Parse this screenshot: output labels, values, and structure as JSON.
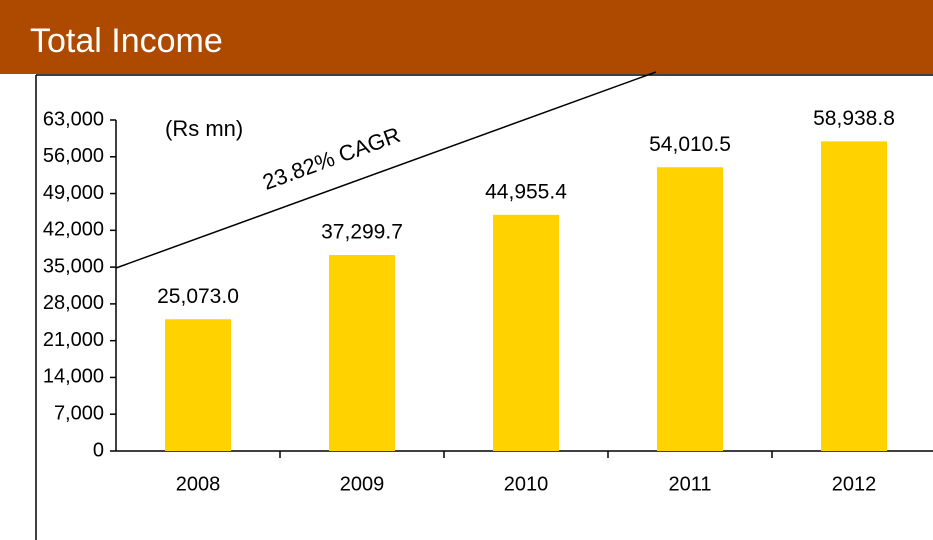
{
  "chart_data": {
    "type": "bar",
    "title": "Total Income",
    "unit_label": "(Rs mn)",
    "annotation": "23.82% CAGR",
    "categories": [
      "2008",
      "2009",
      "2010",
      "2011",
      "2012"
    ],
    "values": [
      25073.0,
      37299.7,
      44955.4,
      54010.5,
      58938.8
    ],
    "value_labels": [
      "25,073.0",
      "37,299.7",
      "44,955.4",
      "54,010.5",
      "58,938.8"
    ],
    "color": "#ffd200",
    "ylim": [
      0,
      63000
    ],
    "yticks": [
      0,
      {
        "value": 7000,
        "label": "7,000"
      },
      {
        "value": 14000,
        "label": "14,000"
      },
      {
        "value": 21000,
        "label": "21,000"
      },
      {
        "value": 28000,
        "label": "28,000"
      },
      {
        "value": 35000,
        "label": "35,000"
      },
      {
        "value": 42000,
        "label": "42,000"
      },
      {
        "value": 49000,
        "label": "49,000"
      },
      {
        "value": 56000,
        "label": "56,000"
      },
      {
        "value": 63000,
        "label": "63,000"
      }
    ],
    "grid": false
  }
}
